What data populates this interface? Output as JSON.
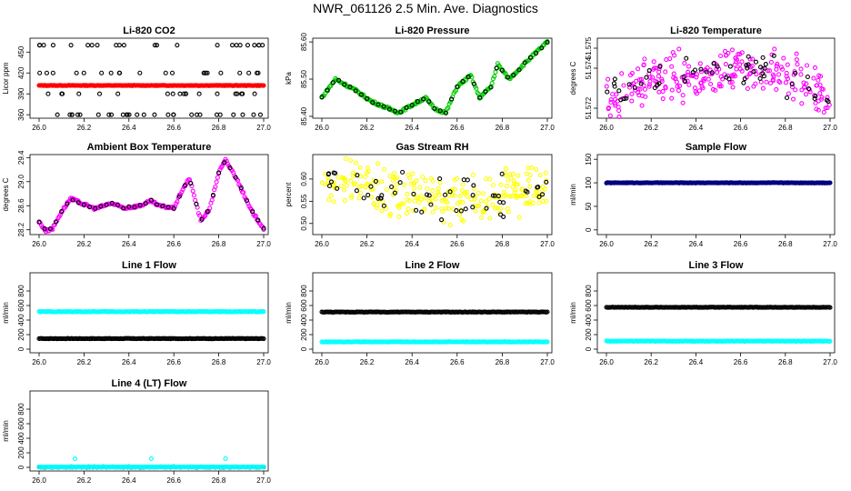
{
  "page": {
    "title": "NWR_061126  2.5 Min. Ave. Diagnostics"
  },
  "colors": {
    "black": "#000000",
    "red": "#ff0000",
    "green": "#00cc00",
    "magenta": "#ff00ff",
    "yellow": "#ffff00",
    "navy": "#000080",
    "cyan": "#00ffff"
  },
  "chart_data": [
    {
      "id": "co2",
      "type": "scatter",
      "title": "Li-820 CO2",
      "ylabel": "Licor ppm",
      "xlabel": "",
      "xlim": [
        26.0,
        27.0
      ],
      "ylim": [
        355,
        470
      ],
      "xticks": [
        "26.0",
        "26.2",
        "26.4",
        "26.6",
        "26.8",
        "27.0"
      ],
      "yticks": [
        {
          "v": 360,
          "t": "360"
        },
        {
          "v": 390,
          "t": "390"
        },
        {
          "v": 420,
          "t": "420"
        },
        {
          "v": 450,
          "t": "450"
        }
      ],
      "series": [
        {
          "color": "red",
          "kind": "flat",
          "value": 402
        },
        {
          "color": "black",
          "kind": "levels",
          "levels": [
            360,
            390,
            420,
            460
          ]
        }
      ]
    },
    {
      "id": "pressure",
      "type": "scatter",
      "title": "Li-820 Pressure",
      "ylabel": "kPa",
      "xlabel": "",
      "xlim": [
        26.0,
        27.0
      ],
      "ylim": [
        85.395,
        85.61
      ],
      "xticks": [
        "26.0",
        "26.2",
        "26.4",
        "26.6",
        "26.8",
        "27.0"
      ],
      "yticks": [
        {
          "v": 85.4,
          "t": "85.40"
        },
        {
          "v": 85.5,
          "t": "85.50"
        },
        {
          "v": 85.6,
          "t": "85.60"
        }
      ],
      "series": [
        {
          "color": "green",
          "kind": "wave",
          "knots": [
            [
              26.0,
              85.45
            ],
            [
              26.06,
              85.5
            ],
            [
              26.15,
              85.47
            ],
            [
              26.22,
              85.44
            ],
            [
              26.3,
              85.42
            ],
            [
              26.34,
              85.41
            ],
            [
              26.4,
              85.43
            ],
            [
              26.46,
              85.45
            ],
            [
              26.5,
              85.42
            ],
            [
              26.55,
              85.41
            ],
            [
              26.6,
              85.48
            ],
            [
              26.66,
              85.51
            ],
            [
              26.7,
              85.45
            ],
            [
              26.75,
              85.48
            ],
            [
              26.78,
              85.54
            ],
            [
              26.83,
              85.5
            ],
            [
              26.88,
              85.53
            ],
            [
              26.93,
              85.56
            ],
            [
              27.0,
              85.6
            ]
          ]
        }
      ]
    },
    {
      "id": "temperature",
      "type": "scatter",
      "title": "Li-820 Temperature",
      "ylabel": "degrees C",
      "xlabel": "",
      "xlim": [
        26.0,
        27.0
      ],
      "ylim": [
        51.5715,
        51.5755
      ],
      "xticks": [
        "26.0",
        "26.2",
        "26.4",
        "26.6",
        "26.8",
        "27.0"
      ],
      "yticks": [
        {
          "v": 51.572,
          "t": "51.572"
        },
        {
          "v": 51.574,
          "t": "51.574"
        },
        {
          "v": 51.575,
          "t": "51.575"
        }
      ],
      "series": [
        {
          "color": "magenta",
          "kind": "noise",
          "center": [
            [
              26.0,
              51.5722
            ],
            [
              26.2,
              51.5735
            ],
            [
              26.5,
              51.5738
            ],
            [
              26.7,
              51.5741
            ],
            [
              26.9,
              51.5733
            ],
            [
              27.0,
              51.5725
            ]
          ]
        }
      ]
    },
    {
      "id": "ambient",
      "type": "scatter",
      "title": "Ambient Box Temperature",
      "ylabel": "degrees C",
      "xlabel": "",
      "xlim": [
        26.0,
        27.0
      ],
      "ylim": [
        28.12,
        29.45
      ],
      "xticks": [
        "26.0",
        "26.2",
        "26.4",
        "26.6",
        "26.8",
        "27.0"
      ],
      "yticks": [
        {
          "v": 28.2,
          "t": "28.2"
        },
        {
          "v": 28.6,
          "t": "28.6"
        },
        {
          "v": 29.0,
          "t": "29.0"
        },
        {
          "v": 29.4,
          "t": "29.4"
        }
      ],
      "series": [
        {
          "color": "magenta",
          "kind": "wave",
          "knots": [
            [
              26.0,
              28.33
            ],
            [
              26.03,
              28.18
            ],
            [
              26.06,
              28.22
            ],
            [
              26.1,
              28.5
            ],
            [
              26.14,
              28.72
            ],
            [
              26.2,
              28.62
            ],
            [
              26.25,
              28.55
            ],
            [
              26.32,
              28.64
            ],
            [
              26.38,
              28.56
            ],
            [
              26.45,
              28.6
            ],
            [
              26.5,
              28.68
            ],
            [
              26.53,
              28.6
            ],
            [
              26.6,
              28.56
            ],
            [
              26.64,
              28.88
            ],
            [
              26.67,
              29.05
            ],
            [
              26.72,
              28.35
            ],
            [
              26.76,
              28.55
            ],
            [
              26.8,
              29.15
            ],
            [
              26.83,
              29.36
            ],
            [
              26.88,
              29.05
            ],
            [
              26.94,
              28.55
            ],
            [
              27.0,
              28.22
            ]
          ]
        }
      ]
    },
    {
      "id": "rh",
      "type": "scatter",
      "title": "Gas Stream RH",
      "ylabel": "percent",
      "xlabel": "",
      "xlim": [
        26.0,
        27.0
      ],
      "ylim": [
        0.475,
        0.655
      ],
      "xticks": [
        "26.0",
        "26.2",
        "26.4",
        "26.6",
        "26.8",
        "27.0"
      ],
      "yticks": [
        {
          "v": 0.5,
          "t": "0.50"
        },
        {
          "v": 0.55,
          "t": "0.55"
        },
        {
          "v": 0.6,
          "t": "0.60"
        }
      ],
      "series": [
        {
          "color": "yellow",
          "kind": "noise",
          "center": [
            [
              26.0,
              0.605
            ],
            [
              26.3,
              0.575
            ],
            [
              26.55,
              0.555
            ],
            [
              26.8,
              0.565
            ],
            [
              27.0,
              0.585
            ]
          ]
        }
      ]
    },
    {
      "id": "sample",
      "type": "scatter",
      "title": "Sample Flow",
      "ylabel": "ml/min",
      "xlabel": "",
      "xlim": [
        26.0,
        27.0
      ],
      "ylim": [
        -10,
        160
      ],
      "xticks": [
        "26.0",
        "26.2",
        "26.4",
        "26.6",
        "26.8",
        "27.0"
      ],
      "yticks": [
        {
          "v": 0,
          "t": "0"
        },
        {
          "v": 50,
          "t": "50"
        },
        {
          "v": 100,
          "t": "100"
        },
        {
          "v": 150,
          "t": "150"
        }
      ],
      "series": [
        {
          "color": "navy",
          "kind": "flat",
          "value": 100
        }
      ]
    },
    {
      "id": "line1",
      "type": "scatter",
      "title": "Line 1 Flow",
      "ylabel": "ml/min",
      "xlabel": "",
      "xlim": [
        26.0,
        27.0
      ],
      "ylim": [
        -50,
        1050
      ],
      "xticks": [
        "26.0",
        "26.2",
        "26.4",
        "26.6",
        "26.8",
        "27.0"
      ],
      "yticks": [
        {
          "v": 0,
          "t": "0"
        },
        {
          "v": 200,
          "t": "200"
        },
        {
          "v": 400,
          "t": "400"
        },
        {
          "v": 600,
          "t": "600"
        },
        {
          "v": 800,
          "t": "800"
        }
      ],
      "series": [
        {
          "color": "cyan",
          "kind": "flat",
          "value": 515
        },
        {
          "color": "black",
          "kind": "flat",
          "value": 145
        }
      ]
    },
    {
      "id": "line2",
      "type": "scatter",
      "title": "Line 2 Flow",
      "ylabel": "ml/min",
      "xlabel": "",
      "xlim": [
        26.0,
        27.0
      ],
      "ylim": [
        -50,
        1050
      ],
      "xticks": [
        "26.0",
        "26.2",
        "26.4",
        "26.6",
        "26.8",
        "27.0"
      ],
      "yticks": [
        {
          "v": 0,
          "t": "0"
        },
        {
          "v": 200,
          "t": "200"
        },
        {
          "v": 400,
          "t": "400"
        },
        {
          "v": 600,
          "t": "600"
        },
        {
          "v": 800,
          "t": "800"
        }
      ],
      "series": [
        {
          "color": "black",
          "kind": "flat",
          "value": 510
        },
        {
          "color": "cyan",
          "kind": "flat",
          "value": 100
        }
      ]
    },
    {
      "id": "line3",
      "type": "scatter",
      "title": "Line 3 Flow",
      "ylabel": "ml/min",
      "xlabel": "",
      "xlim": [
        26.0,
        27.0
      ],
      "ylim": [
        -50,
        1050
      ],
      "xticks": [
        "26.0",
        "26.2",
        "26.4",
        "26.6",
        "26.8",
        "27.0"
      ],
      "yticks": [
        {
          "v": 0,
          "t": "0"
        },
        {
          "v": 200,
          "t": "200"
        },
        {
          "v": 400,
          "t": "400"
        },
        {
          "v": 600,
          "t": "600"
        },
        {
          "v": 800,
          "t": "800"
        }
      ],
      "series": [
        {
          "color": "black",
          "kind": "flat",
          "value": 575
        },
        {
          "color": "cyan",
          "kind": "flat",
          "value": 110
        }
      ]
    },
    {
      "id": "line4",
      "type": "scatter",
      "title": "Line 4 (LT) Flow",
      "ylabel": "ml/min",
      "xlabel": "",
      "xlim": [
        26.0,
        27.0
      ],
      "ylim": [
        -50,
        1050
      ],
      "xticks": [
        "26.0",
        "26.2",
        "26.4",
        "26.6",
        "26.8",
        "27.0"
      ],
      "yticks": [
        {
          "v": 0,
          "t": "0"
        },
        {
          "v": 200,
          "t": "200"
        },
        {
          "v": 400,
          "t": "400"
        },
        {
          "v": 600,
          "t": "600"
        },
        {
          "v": 800,
          "t": "800"
        }
      ],
      "series": [
        {
          "color": "black",
          "kind": "flat",
          "value": 5
        },
        {
          "color": "cyan",
          "kind": "spikes",
          "value": 5,
          "spikes": [
            [
              26.16,
              120
            ],
            [
              26.5,
              120
            ],
            [
              26.83,
              120
            ]
          ]
        }
      ]
    }
  ]
}
